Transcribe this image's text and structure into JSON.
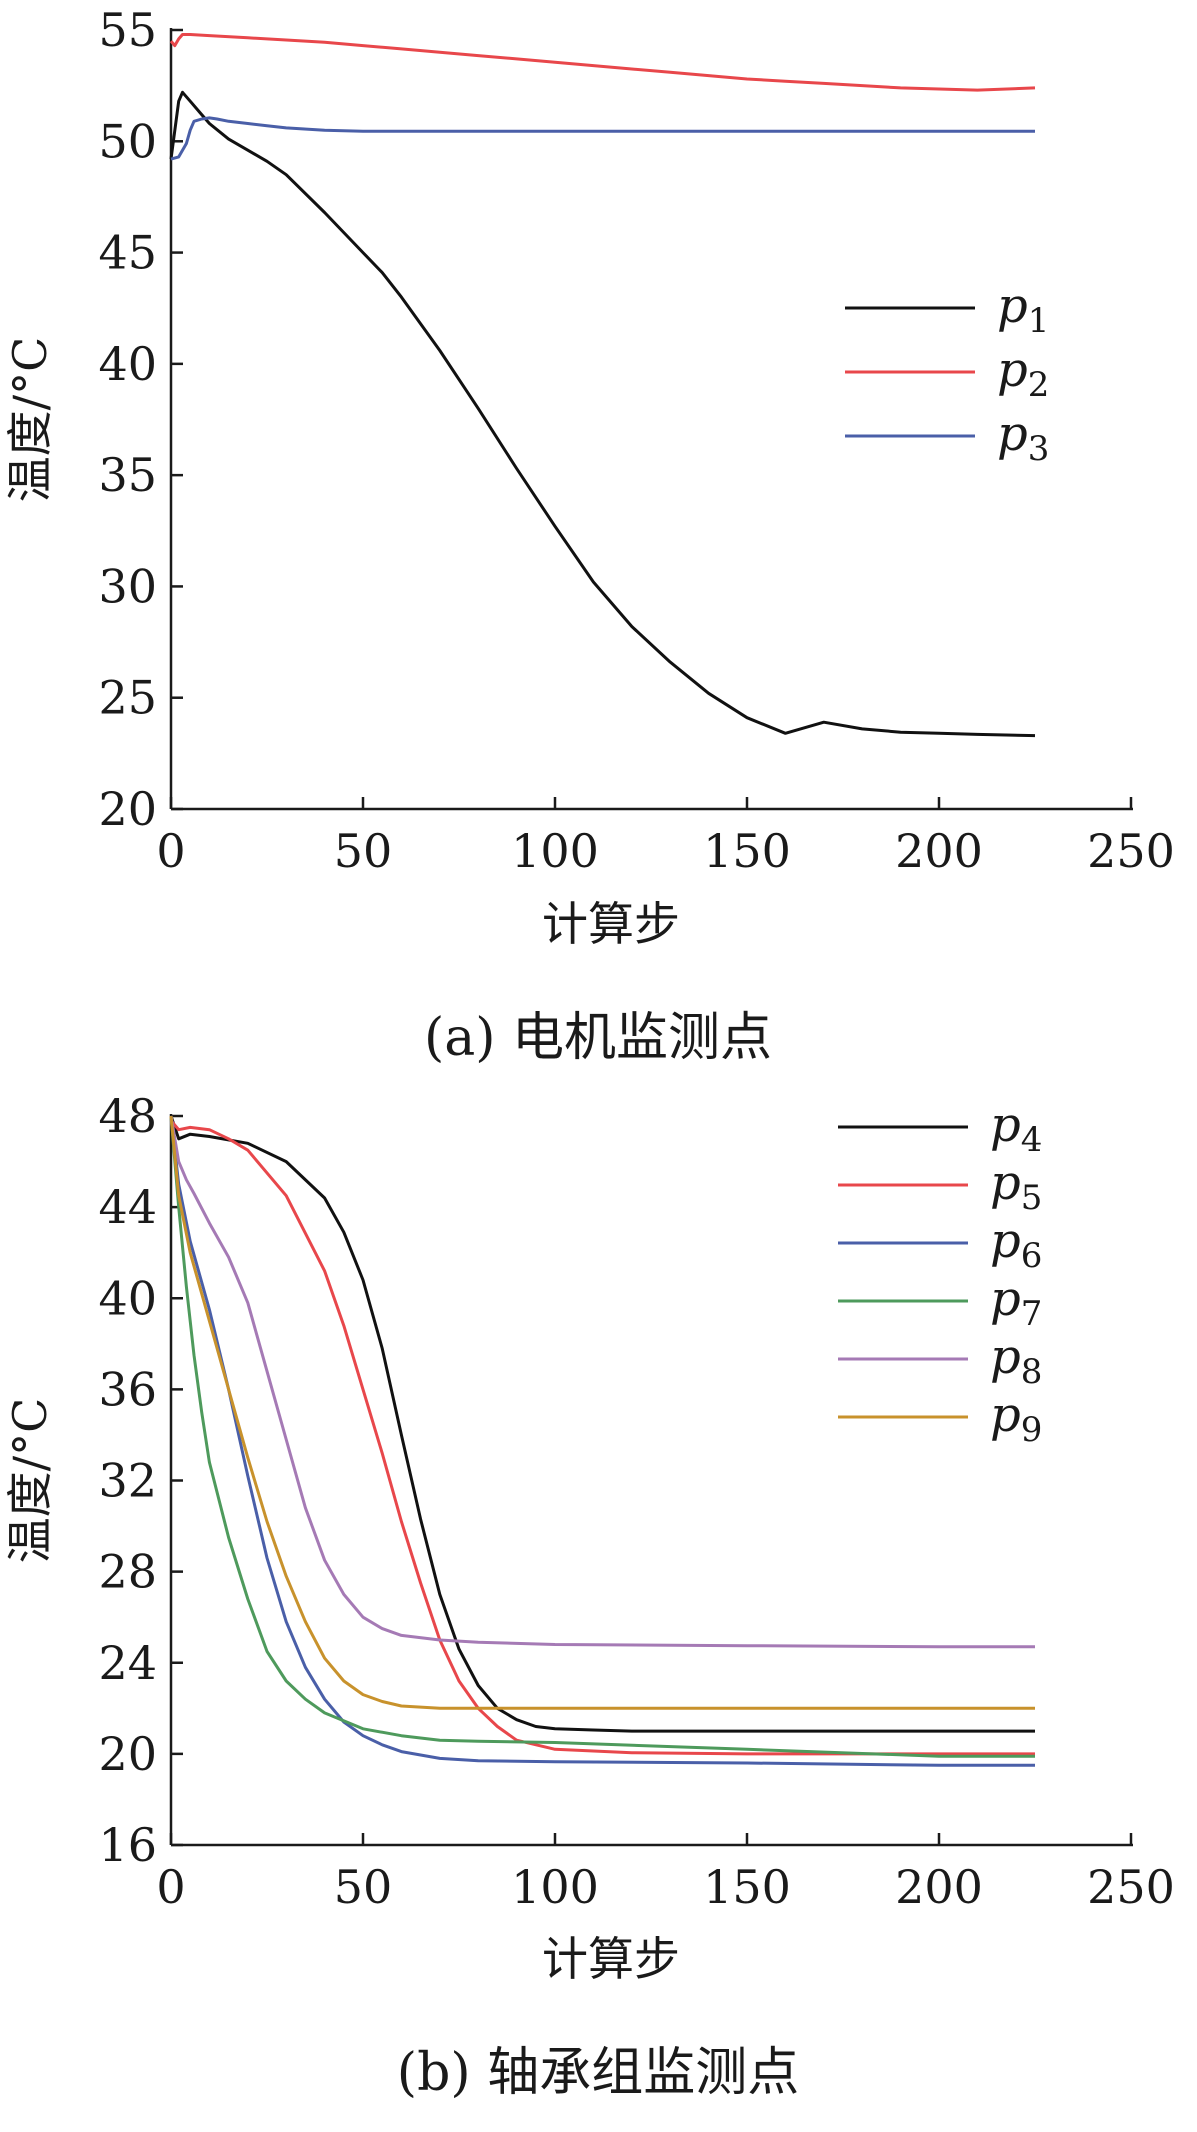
{
  "chart_data": [
    {
      "type": "line",
      "caption": "(a)  电机监测点",
      "xlabel": "计算步",
      "ylabel": "温度/°C",
      "xlim": [
        0,
        250
      ],
      "ylim": [
        20,
        55
      ],
      "xticks": [
        0,
        50,
        100,
        150,
        200,
        250
      ],
      "yticks": [
        20,
        25,
        30,
        35,
        40,
        45,
        50,
        55
      ],
      "grid": false,
      "legend_position": "right",
      "series": [
        {
          "name": "p",
          "sub": "1",
          "color": "#111111",
          "x": [
            0,
            2,
            3,
            5,
            8,
            10,
            15,
            20,
            25,
            30,
            40,
            50,
            55,
            60,
            70,
            80,
            90,
            100,
            110,
            120,
            130,
            140,
            150,
            160,
            170,
            180,
            190,
            200,
            210,
            225
          ],
          "y": [
            49.2,
            51.8,
            52.2,
            51.8,
            51.2,
            50.8,
            50.1,
            49.6,
            49.1,
            48.5,
            46.8,
            45.0,
            44.1,
            43.0,
            40.6,
            38.0,
            35.3,
            32.7,
            30.2,
            28.2,
            26.6,
            25.2,
            24.1,
            23.4,
            23.9,
            23.6,
            23.45,
            23.4,
            23.35,
            23.3
          ]
        },
        {
          "name": "p",
          "sub": "2",
          "color": "#e8474b",
          "x": [
            0,
            1,
            2,
            3,
            5,
            10,
            20,
            30,
            40,
            50,
            60,
            70,
            80,
            90,
            100,
            110,
            120,
            130,
            140,
            150,
            160,
            170,
            180,
            190,
            200,
            210,
            225
          ],
          "y": [
            54.5,
            54.3,
            54.6,
            54.8,
            54.8,
            54.75,
            54.65,
            54.55,
            54.45,
            54.3,
            54.15,
            54.0,
            53.85,
            53.7,
            53.55,
            53.4,
            53.25,
            53.1,
            52.95,
            52.8,
            52.7,
            52.6,
            52.5,
            52.4,
            52.35,
            52.3,
            52.4
          ]
        },
        {
          "name": "p",
          "sub": "3",
          "color": "#4a5fa8",
          "x": [
            0,
            2,
            4,
            5,
            6,
            8,
            10,
            12,
            15,
            20,
            25,
            30,
            40,
            50,
            60,
            80,
            100,
            150,
            200,
            225
          ],
          "y": [
            49.2,
            49.3,
            49.9,
            50.5,
            50.9,
            51.0,
            51.05,
            51.0,
            50.9,
            50.8,
            50.7,
            50.6,
            50.5,
            50.45,
            50.45,
            50.45,
            50.45,
            50.45,
            50.45,
            50.45
          ]
        }
      ]
    },
    {
      "type": "line",
      "caption": "(b)  轴承组监测点",
      "xlabel": "计算步",
      "ylabel": "温度/°C",
      "xlim": [
        0,
        250
      ],
      "ylim": [
        16,
        48
      ],
      "xticks": [
        0,
        50,
        100,
        150,
        200,
        250
      ],
      "yticks": [
        16,
        20,
        24,
        28,
        32,
        36,
        40,
        44,
        48
      ],
      "grid": false,
      "legend_position": "top-right",
      "series": [
        {
          "name": "p",
          "sub": "4",
          "color": "#111111",
          "x": [
            0,
            2,
            5,
            10,
            20,
            30,
            40,
            45,
            50,
            55,
            60,
            65,
            70,
            75,
            80,
            85,
            90,
            95,
            100,
            110,
            120,
            150,
            200,
            225
          ],
          "y": [
            48.0,
            47.0,
            47.2,
            47.1,
            46.8,
            46.0,
            44.4,
            42.9,
            40.8,
            37.8,
            34.0,
            30.3,
            27.0,
            24.6,
            23.0,
            22.0,
            21.5,
            21.2,
            21.1,
            21.05,
            21.0,
            21.0,
            21.0,
            21.0
          ]
        },
        {
          "name": "p",
          "sub": "5",
          "color": "#e8474b",
          "x": [
            0,
            2,
            5,
            10,
            15,
            20,
            30,
            40,
            45,
            50,
            55,
            60,
            65,
            70,
            75,
            80,
            85,
            90,
            100,
            120,
            150,
            200,
            225
          ],
          "y": [
            47.8,
            47.4,
            47.5,
            47.4,
            47.0,
            46.5,
            44.5,
            41.2,
            38.8,
            36.0,
            33.2,
            30.2,
            27.5,
            25.0,
            23.2,
            22.0,
            21.2,
            20.6,
            20.2,
            20.05,
            20.0,
            20.0,
            20.0
          ]
        },
        {
          "name": "p",
          "sub": "6",
          "color": "#4a5fa8",
          "x": [
            0,
            2,
            5,
            10,
            15,
            20,
            25,
            30,
            35,
            40,
            45,
            50,
            55,
            60,
            70,
            80,
            100,
            150,
            200,
            225
          ],
          "y": [
            48.0,
            45.0,
            42.5,
            39.5,
            36.0,
            32.2,
            28.6,
            25.8,
            23.8,
            22.4,
            21.4,
            20.8,
            20.4,
            20.1,
            19.8,
            19.7,
            19.65,
            19.6,
            19.5,
            19.5
          ]
        },
        {
          "name": "p",
          "sub": "7",
          "color": "#4e9a5c",
          "x": [
            0,
            2,
            4,
            6,
            8,
            10,
            15,
            20,
            25,
            30,
            35,
            40,
            50,
            60,
            70,
            80,
            100,
            150,
            200,
            225
          ],
          "y": [
            48.0,
            44.0,
            40.5,
            37.5,
            35.0,
            32.8,
            29.5,
            26.8,
            24.5,
            23.2,
            22.4,
            21.8,
            21.1,
            20.8,
            20.6,
            20.55,
            20.5,
            20.2,
            19.9,
            19.9
          ]
        },
        {
          "name": "p",
          "sub": "8",
          "color": "#a57ab5",
          "x": [
            0,
            2,
            4,
            6,
            10,
            15,
            20,
            25,
            30,
            35,
            40,
            45,
            50,
            55,
            60,
            70,
            80,
            100,
            150,
            200,
            225
          ],
          "y": [
            48.0,
            46.0,
            45.2,
            44.6,
            43.3,
            41.8,
            39.8,
            36.8,
            33.8,
            30.8,
            28.5,
            27.0,
            26.0,
            25.5,
            25.2,
            25.0,
            24.9,
            24.8,
            24.75,
            24.7,
            24.7
          ]
        },
        {
          "name": "p",
          "sub": "9",
          "color": "#c8922c",
          "x": [
            0,
            2,
            5,
            10,
            15,
            20,
            25,
            30,
            35,
            40,
            45,
            50,
            55,
            60,
            70,
            80,
            100,
            150,
            200,
            225
          ],
          "y": [
            48.0,
            44.5,
            42.0,
            39.0,
            36.0,
            33.0,
            30.2,
            27.8,
            25.8,
            24.2,
            23.2,
            22.6,
            22.3,
            22.1,
            22.0,
            22.0,
            22.0,
            22.0,
            22.0,
            22.0
          ]
        }
      ]
    }
  ]
}
